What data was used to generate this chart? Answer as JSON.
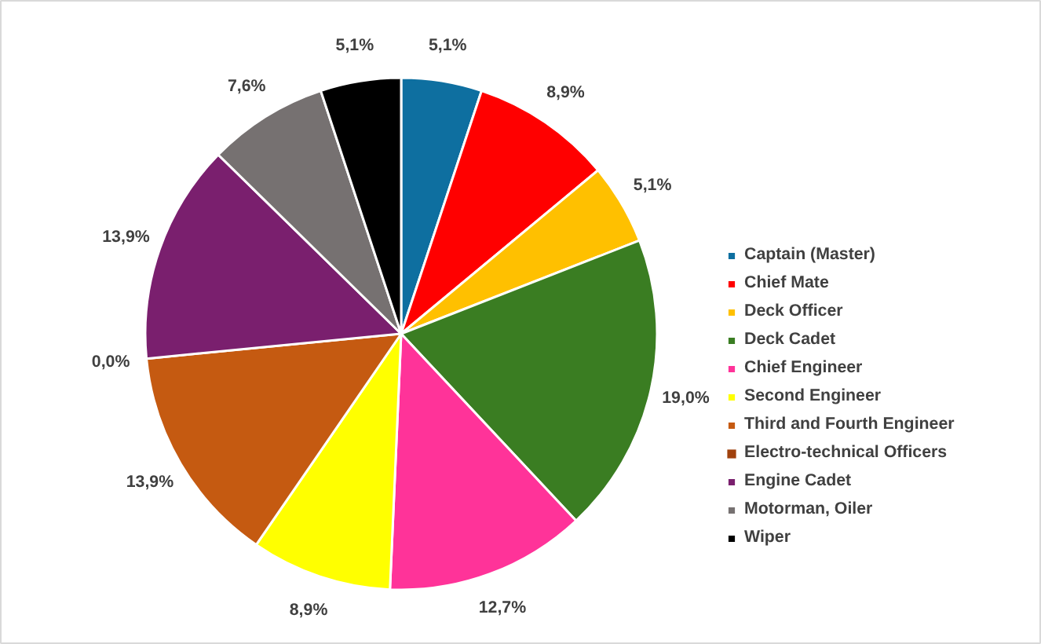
{
  "chart_data": {
    "type": "pie",
    "categories": [
      "Captain (Master)",
      "Chief Mate",
      "Deck Officer",
      "Deck Cadet",
      "Chief Engineer",
      "Second Engineer",
      "Third and Fourth Engineer",
      "Electro-technical Officers",
      "Engine Cadet",
      "Motorman, Oiler",
      "Wiper"
    ],
    "values": [
      5.1,
      8.9,
      5.1,
      19.0,
      12.7,
      8.9,
      13.9,
      0.0,
      13.9,
      7.6,
      5.1
    ],
    "value_labels": [
      "5,1%",
      "8,9%",
      "5,1%",
      "19,0%",
      "12,7%",
      "8,9%",
      "13,9%",
      "0,0%",
      "13,9%",
      "7,6%",
      "5,1%"
    ],
    "colors": [
      "#0e6fa0",
      "#ff0000",
      "#ffc000",
      "#3a7d22",
      "#ff3399",
      "#ffff00",
      "#c55a11",
      "#a0410d",
      "#7a1f6e",
      "#767171",
      "#000000"
    ],
    "legend": "right"
  }
}
